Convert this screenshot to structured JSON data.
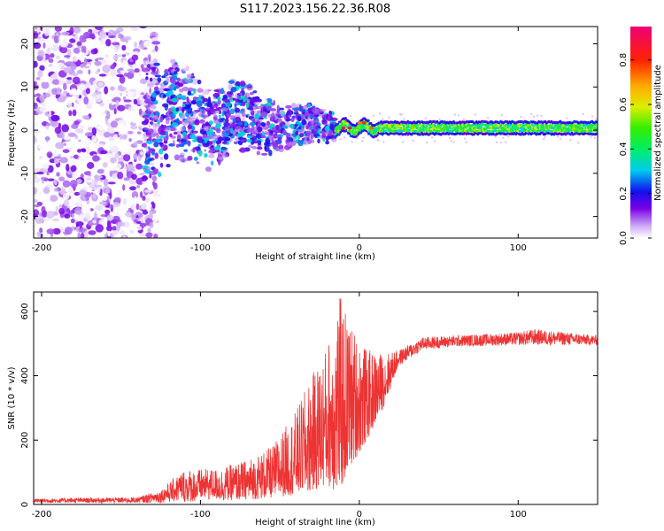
{
  "title": "S117.2023.156.22.36.R08",
  "chart_data": [
    {
      "type": "heatmap",
      "xlabel": "Height of straight line (km)",
      "ylabel": "Frequency (Hz)",
      "xlim": [
        -205,
        150
      ],
      "ylim": [
        -25,
        24
      ],
      "xticks": [
        -200,
        -100,
        0,
        100
      ],
      "yticks": [
        -20,
        -10,
        0,
        10,
        20
      ],
      "colorbar": {
        "label": "Normalized spectral amplitude",
        "range": [
          0.0,
          0.95
        ],
        "ticks": [
          0.0,
          0.2,
          0.4,
          0.6,
          0.8
        ]
      },
      "regions": [
        {
          "x_range": [
            -205,
            -135
          ],
          "freq_range": [
            -25,
            24
          ],
          "amplitude_range": [
            0.0,
            0.15
          ],
          "description_level": "noise"
        },
        {
          "x_range": [
            -135,
            -15
          ],
          "freq_range": [
            -13,
            17
          ],
          "amplitude_range": [
            0.1,
            0.35
          ]
        },
        {
          "x_range": [
            -15,
            150
          ],
          "freq_center": 0.5,
          "freq_halfwidth": 1.2,
          "amplitude_range": [
            0.3,
            0.6
          ]
        }
      ]
    },
    {
      "type": "line",
      "xlabel": "Height of straight line (km)",
      "ylabel": "SNR (10 * v/v)",
      "xlim": [
        -205,
        150
      ],
      "ylim": [
        0,
        660
      ],
      "xticks": [
        -200,
        -100,
        0,
        100
      ],
      "yticks": [
        0,
        200,
        400,
        600
      ],
      "color": "#ee3333",
      "envelope": [
        {
          "x": -205,
          "low": 5,
          "high": 18
        },
        {
          "x": -180,
          "low": 5,
          "high": 20
        },
        {
          "x": -140,
          "low": 5,
          "high": 22
        },
        {
          "x": -125,
          "low": 5,
          "high": 45
        },
        {
          "x": -110,
          "low": 8,
          "high": 110
        },
        {
          "x": -90,
          "low": 12,
          "high": 110
        },
        {
          "x": -70,
          "low": 15,
          "high": 140
        },
        {
          "x": -55,
          "low": 20,
          "high": 180
        },
        {
          "x": -40,
          "low": 30,
          "high": 290
        },
        {
          "x": -30,
          "low": 40,
          "high": 400
        },
        {
          "x": -20,
          "low": 60,
          "high": 500
        },
        {
          "x": -13,
          "low": 30,
          "high": 660
        },
        {
          "x": -5,
          "low": 120,
          "high": 560
        },
        {
          "x": 5,
          "low": 200,
          "high": 480
        },
        {
          "x": 15,
          "low": 300,
          "high": 470
        },
        {
          "x": 25,
          "low": 430,
          "high": 480
        },
        {
          "x": 40,
          "low": 480,
          "high": 520
        },
        {
          "x": 60,
          "low": 490,
          "high": 525
        },
        {
          "x": 100,
          "low": 495,
          "high": 535
        },
        {
          "x": 110,
          "low": 495,
          "high": 545
        },
        {
          "x": 150,
          "low": 495,
          "high": 525
        }
      ]
    }
  ]
}
